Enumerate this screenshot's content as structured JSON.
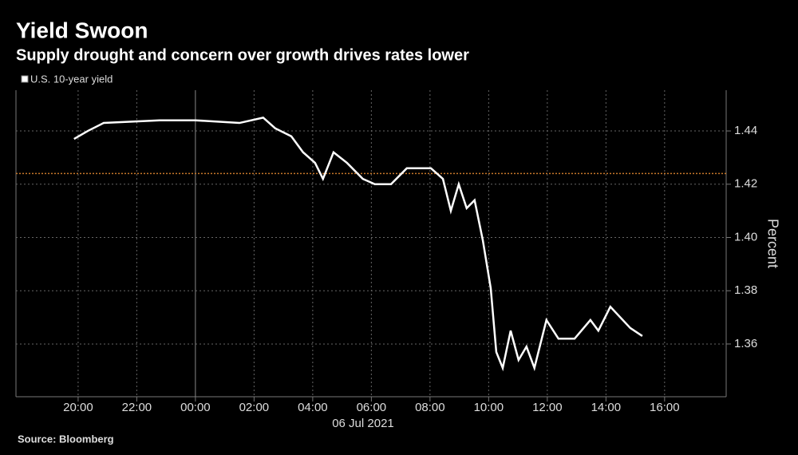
{
  "chart_data": {
    "type": "line",
    "title": "Yield Swoon",
    "subtitle": "Supply drought and concern over growth drives rates lower",
    "source": "Source: Bloomberg",
    "xlabel": "06 Jul 2021",
    "ylabel": "Percent",
    "x": [
      -4.14,
      -3.67,
      -3.13,
      -1.22,
      0,
      1.5,
      2.31,
      2.72,
      3.27,
      3.67,
      4.08,
      4.35,
      4.71,
      5.17,
      5.71,
      6.12,
      6.67,
      7.21,
      8.03,
      8.44,
      8.71,
      8.98,
      9.25,
      9.52,
      9.8,
      10.07,
      10.26,
      10.48,
      10.75,
      11.02,
      11.29,
      11.56,
      11.97,
      12.38,
      12.93,
      13.47,
      13.74,
      14.15,
      14.83,
      15.24
    ],
    "series": [
      {
        "name": "U.S. 10-year yield",
        "color": "#ffffff",
        "values": [
          1.437,
          1.44,
          1.443,
          1.444,
          1.444,
          1.443,
          1.445,
          1.441,
          1.438,
          1.432,
          1.428,
          1.422,
          1.432,
          1.428,
          1.422,
          1.42,
          1.42,
          1.426,
          1.426,
          1.422,
          1.41,
          1.42,
          1.411,
          1.414,
          1.399,
          1.381,
          1.357,
          1.351,
          1.365,
          1.354,
          1.359,
          1.351,
          1.369,
          1.362,
          1.362,
          1.369,
          1.365,
          1.374,
          1.366,
          1.363
        ]
      }
    ],
    "hline": 1.424,
    "hline_color": "#c8782a",
    "xlim": [
      -6.12,
      18.1
    ],
    "xticks": [
      {
        "value": -4,
        "label": "20:00"
      },
      {
        "value": -2,
        "label": "22:00"
      },
      {
        "value": 0,
        "label": "00:00"
      },
      {
        "value": 2,
        "label": "02:00"
      },
      {
        "value": 4,
        "label": "04:00"
      },
      {
        "value": 6,
        "label": "06:00"
      },
      {
        "value": 8,
        "label": "08:00"
      },
      {
        "value": 10,
        "label": "10:00"
      },
      {
        "value": 12,
        "label": "12:00"
      },
      {
        "value": 14,
        "label": "14:00"
      },
      {
        "value": 16,
        "label": "16:00"
      }
    ],
    "ylim": [
      1.3402,
      1.4553
    ],
    "yticks": [
      1.36,
      1.38,
      {
        "value": 1.4,
        "label": "1.40"
      },
      1.42,
      1.44
    ],
    "grid": true
  }
}
